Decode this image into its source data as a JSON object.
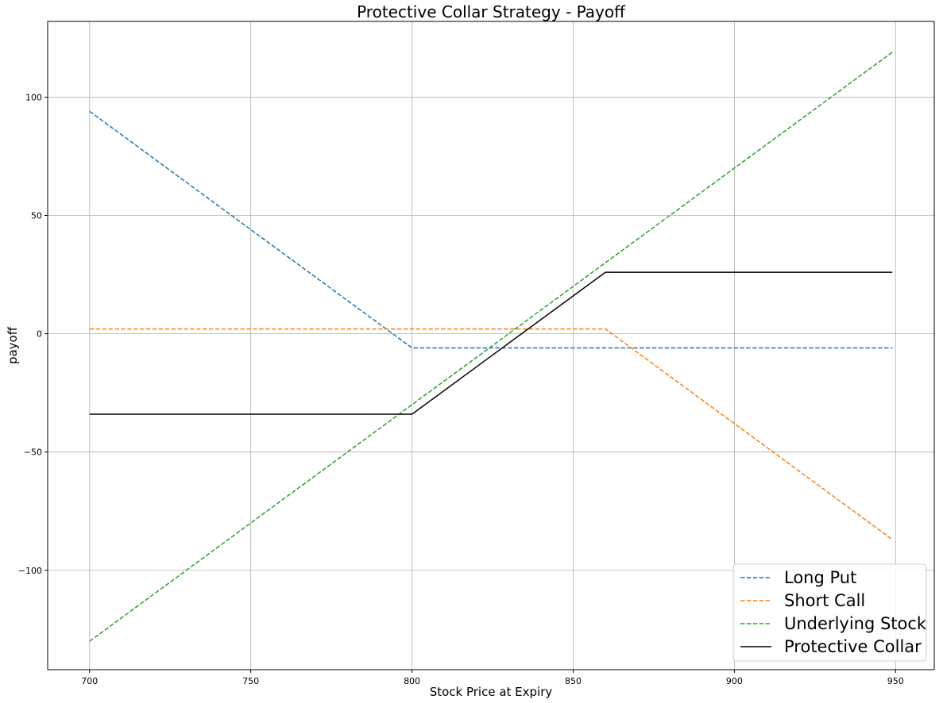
{
  "chart_data": {
    "type": "line",
    "title": "Protective Collar Strategy - Payoff",
    "xlabel": "Stock Price at Expiry",
    "ylabel": "payoff",
    "xlim": [
      687,
      962
    ],
    "ylim": [
      -142,
      132
    ],
    "x_ticks": [
      700,
      750,
      800,
      850,
      900,
      950
    ],
    "x_tick_labels": [
      "700",
      "750",
      "800",
      "850",
      "900",
      "950"
    ],
    "y_ticks": [
      -100,
      -50,
      0,
      50,
      100
    ],
    "y_tick_labels": [
      "−100",
      "−50",
      "0",
      "50",
      "100"
    ],
    "grid": true,
    "legend_position": "bottom-right",
    "series": [
      {
        "name": "Long Put",
        "color": "#1f77b4",
        "dash": "dashed",
        "x": [
          700,
          800,
          949
        ],
        "y": [
          94,
          -6,
          -6
        ]
      },
      {
        "name": "Short Call",
        "color": "#ff7f0e",
        "dash": "dashed",
        "x": [
          700,
          860,
          949
        ],
        "y": [
          2,
          2,
          -87
        ]
      },
      {
        "name": "Underlying Stock",
        "color": "#2ca02c",
        "dash": "dashed",
        "x": [
          700,
          949
        ],
        "y": [
          -130,
          119
        ]
      },
      {
        "name": "Protective Collar",
        "color": "#000000",
        "dash": "solid",
        "x": [
          700,
          800,
          860,
          949
        ],
        "y": [
          -34,
          -34,
          26,
          26
        ]
      }
    ]
  }
}
